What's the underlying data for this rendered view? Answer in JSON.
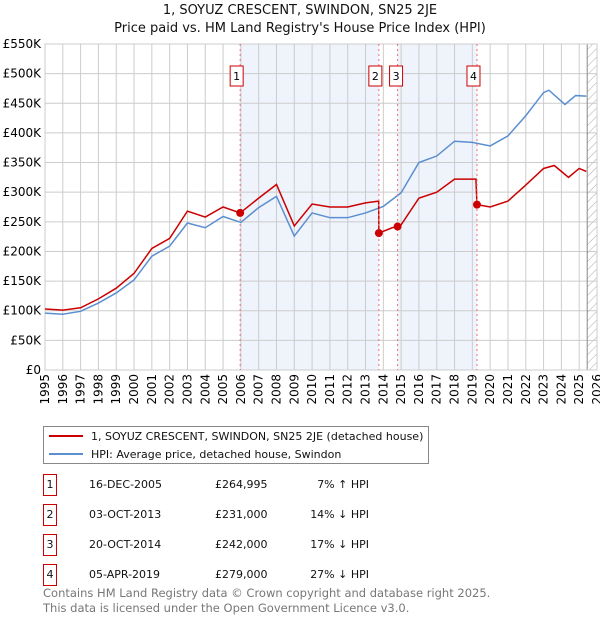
{
  "title_line1": "1, SOYUZ CRESCENT, SWINDON, SN25 2JE",
  "title_line2": "Price paid vs. HM Land Registry's House Price Index (HPI)",
  "chart_data": {
    "type": "line",
    "xlim": [
      1995,
      2026
    ],
    "ylim": [
      0,
      550000
    ],
    "x_ticks": [
      "1995",
      "1996",
      "1997",
      "1998",
      "1999",
      "2000",
      "2001",
      "2002",
      "2003",
      "2004",
      "2005",
      "2006",
      "2007",
      "2008",
      "2009",
      "2010",
      "2011",
      "2012",
      "2013",
      "2014",
      "2015",
      "2016",
      "2017",
      "2018",
      "2019",
      "2020",
      "2021",
      "2022",
      "2023",
      "2024",
      "2025",
      "2026"
    ],
    "y_ticks": [
      {
        "v": 0,
        "label": "£0"
      },
      {
        "v": 50000,
        "label": "£50K"
      },
      {
        "v": 100000,
        "label": "£100K"
      },
      {
        "v": 150000,
        "label": "£150K"
      },
      {
        "v": 200000,
        "label": "£200K"
      },
      {
        "v": 250000,
        "label": "£250K"
      },
      {
        "v": 300000,
        "label": "£300K"
      },
      {
        "v": 350000,
        "label": "£350K"
      },
      {
        "v": 400000,
        "label": "£400K"
      },
      {
        "v": 450000,
        "label": "£450K"
      },
      {
        "v": 500000,
        "label": "£500K"
      },
      {
        "v": 550000,
        "label": "£550K"
      }
    ],
    "grid": true,
    "series": [
      {
        "name": "1, SOYUZ CRESCENT, SWINDON, SN25 2JE (detached house)",
        "color": "#cc0000",
        "points": [
          [
            1995,
            103000
          ],
          [
            1996,
            101000
          ],
          [
            1997,
            105000
          ],
          [
            1998,
            120000
          ],
          [
            1999,
            138000
          ],
          [
            2000,
            163000
          ],
          [
            2001,
            205000
          ],
          [
            2002,
            222000
          ],
          [
            2003,
            268000
          ],
          [
            2004,
            258000
          ],
          [
            2005,
            275000
          ],
          [
            2005.96,
            264995
          ],
          [
            2007,
            290000
          ],
          [
            2008,
            313000
          ],
          [
            2009,
            243000
          ],
          [
            2010,
            280000
          ],
          [
            2011,
            275000
          ],
          [
            2012,
            275000
          ],
          [
            2013,
            282000
          ],
          [
            2013.74,
            285000
          ],
          [
            2013.75,
            231000
          ],
          [
            2014.5,
            240000
          ],
          [
            2014.8,
            242000
          ],
          [
            2015,
            245000
          ],
          [
            2016,
            290000
          ],
          [
            2017,
            300000
          ],
          [
            2018,
            322000
          ],
          [
            2019.2,
            322000
          ],
          [
            2019.26,
            279000
          ],
          [
            2020,
            275000
          ],
          [
            2021,
            285000
          ],
          [
            2022,
            312000
          ],
          [
            2023,
            340000
          ],
          [
            2023.6,
            345000
          ],
          [
            2024.4,
            325000
          ],
          [
            2025,
            340000
          ],
          [
            2025.4,
            335000
          ]
        ]
      },
      {
        "name": "HPI: Average price, detached house, Swindon",
        "color": "#5b8fd0",
        "points": [
          [
            1995,
            96000
          ],
          [
            1996,
            94000
          ],
          [
            1997,
            99000
          ],
          [
            1998,
            113000
          ],
          [
            1999,
            130000
          ],
          [
            2000,
            152000
          ],
          [
            2001,
            192000
          ],
          [
            2002,
            209000
          ],
          [
            2003,
            248000
          ],
          [
            2004,
            240000
          ],
          [
            2005,
            259000
          ],
          [
            2006,
            249000
          ],
          [
            2007,
            274000
          ],
          [
            2008,
            293000
          ],
          [
            2009,
            226000
          ],
          [
            2010,
            265000
          ],
          [
            2011,
            257000
          ],
          [
            2012,
            257000
          ],
          [
            2013,
            265000
          ],
          [
            2014,
            276000
          ],
          [
            2015,
            299000
          ],
          [
            2016,
            350000
          ],
          [
            2017,
            361000
          ],
          [
            2018,
            386000
          ],
          [
            2019,
            384000
          ],
          [
            2020,
            378000
          ],
          [
            2021,
            395000
          ],
          [
            2022,
            429000
          ],
          [
            2023,
            468000
          ],
          [
            2023.3,
            472000
          ],
          [
            2024.2,
            448000
          ],
          [
            2024.8,
            463000
          ],
          [
            2025.4,
            462000
          ]
        ]
      }
    ],
    "sales": [
      {
        "id": "1",
        "date": "16-DEC-2005",
        "x": 2005.96,
        "price": 264995,
        "price_label": "£264,995",
        "hpi": "7% ↑ HPI"
      },
      {
        "id": "2",
        "date": "03-OCT-2013",
        "x": 2013.75,
        "price": 231000,
        "price_label": "£231,000",
        "hpi": "14% ↓ HPI"
      },
      {
        "id": "3",
        "date": "20-OCT-2014",
        "x": 2014.8,
        "price": 242000,
        "price_label": "£242,000",
        "hpi": "17% ↓ HPI"
      },
      {
        "id": "4",
        "date": "05-APR-2019",
        "x": 2019.26,
        "price": 279000,
        "price_label": "£279,000",
        "hpi": "27% ↓ HPI"
      }
    ],
    "shaded_ranges": [
      [
        2005.96,
        2013.75
      ],
      [
        2014.8,
        2019.26
      ]
    ],
    "forecast_start": 2025.45
  },
  "legend": [
    "1, SOYUZ CRESCENT, SWINDON, SN25 2JE (detached house)",
    "HPI: Average price, detached house, Swindon"
  ],
  "footer": [
    "Contains HM Land Registry data © Crown copyright and database right 2025.",
    "This data is licensed under the Open Government Licence v3.0."
  ]
}
